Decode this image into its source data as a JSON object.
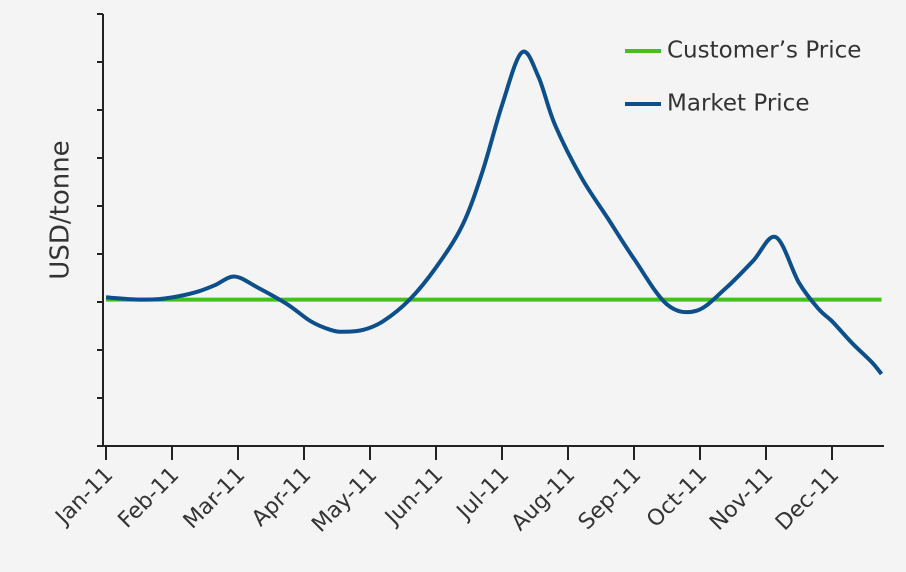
{
  "chart_data": {
    "type": "line",
    "ylabel": "USD/tonne",
    "xlabel": "",
    "categories": [
      "Jan-11",
      "Feb-11",
      "Mar-11",
      "Apr-11",
      "May-11",
      "Jun-11",
      "Jul-11",
      "Aug-11",
      "Sep-11",
      "Oct-11",
      "Nov-11",
      "Dec-11"
    ],
    "ylim": [
      0,
      9
    ],
    "y_tick_count": 9,
    "y_tick_labels_shown": false,
    "grid": false,
    "legend_position": "top-right",
    "series": [
      {
        "name": "Customer’s Price",
        "color": "#44c01c",
        "x": [
          0,
          11.75
        ],
        "y": [
          3.05,
          3.05
        ]
      },
      {
        "name": "Market Price",
        "color": "#0d4f8b",
        "x": [
          0,
          0.15,
          0.5,
          0.8,
          1.1,
          1.4,
          1.65,
          1.95,
          2.3,
          2.75,
          3.1,
          3.4,
          3.6,
          3.9,
          4.2,
          4.6,
          5.0,
          5.4,
          5.7,
          6.0,
          6.3,
          6.55,
          6.8,
          7.2,
          7.6,
          8.0,
          8.5,
          8.95,
          9.4,
          9.8,
          10.15,
          10.5,
          10.8,
          11.0,
          11.3,
          11.6,
          11.75
        ],
        "y": [
          3.1,
          3.08,
          3.05,
          3.06,
          3.12,
          3.22,
          3.35,
          3.53,
          3.3,
          2.95,
          2.6,
          2.42,
          2.38,
          2.42,
          2.6,
          3.05,
          3.72,
          4.6,
          5.7,
          7.1,
          8.2,
          7.7,
          6.7,
          5.6,
          4.75,
          3.9,
          2.95,
          2.82,
          3.3,
          3.85,
          4.35,
          3.4,
          2.85,
          2.6,
          2.15,
          1.75,
          1.5
        ]
      }
    ]
  }
}
